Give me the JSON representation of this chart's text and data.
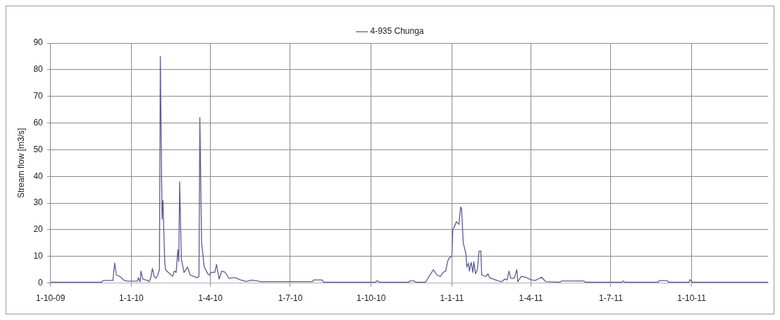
{
  "chart_data": {
    "type": "line",
    "ylabel": "Stream flow [m3/s]",
    "legend": "top",
    "grid": true,
    "marker": "none",
    "line_style": "solid",
    "xlim": [
      "2009-10-01",
      "2011-12-27"
    ],
    "xticks": [
      {
        "value": "2009-10-01",
        "label": "1-10-09"
      },
      {
        "value": "2010-01-01",
        "label": "1-1-10"
      },
      {
        "value": "2010-04-01",
        "label": "1-4-10"
      },
      {
        "value": "2010-07-01",
        "label": "1-7-10"
      },
      {
        "value": "2010-10-01",
        "label": "1-10-10"
      },
      {
        "value": "2011-01-01",
        "label": "1-1-11"
      },
      {
        "value": "2011-04-01",
        "label": "1-4-11"
      },
      {
        "value": "2011-07-01",
        "label": "1-7-11"
      },
      {
        "value": "2011-10-01",
        "label": "1-10-11"
      }
    ],
    "ylim": [
      0,
      90
    ],
    "yticks": [
      0,
      10,
      20,
      30,
      40,
      50,
      60,
      70,
      80,
      90
    ],
    "x": [
      "2009-10-01",
      "2009-11-28",
      "2009-11-30",
      "2009-12-11",
      "2009-12-13",
      "2009-12-15",
      "2009-12-19",
      "2009-12-23",
      "2009-12-27",
      "2010-01-08",
      "2010-01-09",
      "2010-01-11",
      "2010-01-12",
      "2010-01-14",
      "2010-01-19",
      "2010-01-21",
      "2010-01-23",
      "2010-01-25",
      "2010-01-27",
      "2010-01-29",
      "2010-01-31",
      "2010-02-02",
      "2010-02-03",
      "2010-02-05",
      "2010-02-06",
      "2010-02-08",
      "2010-02-09",
      "2010-02-12",
      "2010-02-17",
      "2010-02-19",
      "2010-02-21",
      "2010-02-23",
      "2010-02-24",
      "2010-02-25",
      "2010-02-27",
      "2010-03-02",
      "2010-03-06",
      "2010-03-09",
      "2010-03-13",
      "2010-03-17",
      "2010-03-19",
      "2010-03-20",
      "2010-03-22",
      "2010-03-25",
      "2010-03-29",
      "2010-03-31",
      "2010-04-02",
      "2010-04-06",
      "2010-04-08",
      "2010-04-11",
      "2010-04-14",
      "2010-04-18",
      "2010-04-22",
      "2010-04-26",
      "2010-04-30",
      "2010-05-04",
      "2010-05-12",
      "2010-05-18",
      "2010-05-25",
      "2010-05-28",
      "2010-07-26",
      "2010-07-28",
      "2010-08-06",
      "2010-08-08",
      "2010-10-06",
      "2010-10-08",
      "2010-10-11",
      "2010-11-13",
      "2010-11-14",
      "2010-11-19",
      "2010-11-21",
      "2010-12-02",
      "2010-12-07",
      "2010-12-11",
      "2010-12-15",
      "2010-12-19",
      "2010-12-22",
      "2010-12-25",
      "2010-12-27",
      "2010-12-29",
      "2011-01-01",
      "2011-01-02",
      "2011-01-05",
      "2011-01-06",
      "2011-01-09",
      "2011-01-11",
      "2011-01-12",
      "2011-01-14",
      "2011-01-17",
      "2011-01-18",
      "2011-01-20",
      "2011-01-21",
      "2011-01-23",
      "2011-01-25",
      "2011-01-26",
      "2011-01-28",
      "2011-01-30",
      "2011-02-01",
      "2011-02-03",
      "2011-02-04",
      "2011-02-09",
      "2011-02-11",
      "2011-02-13",
      "2011-02-17",
      "2011-02-23",
      "2011-02-27",
      "2011-03-02",
      "2011-03-05",
      "2011-03-07",
      "2011-03-09",
      "2011-03-13",
      "2011-03-16",
      "2011-03-17",
      "2011-03-21",
      "2011-03-26",
      "2011-03-30",
      "2011-04-02",
      "2011-04-06",
      "2011-04-13",
      "2011-04-18",
      "2011-05-04",
      "2011-05-06",
      "2011-05-31",
      "2011-06-02",
      "2011-07-14",
      "2011-07-15",
      "2011-07-17",
      "2011-08-24",
      "2011-08-25",
      "2011-09-03",
      "2011-09-05",
      "2011-09-28",
      "2011-09-29",
      "2011-10-02",
      "2011-12-27"
    ],
    "series": [
      {
        "name": "4-935 Chunga",
        "color": "#585c9c",
        "values": [
          0.3,
          0.3,
          1.0,
          1.0,
          7.5,
          3.0,
          2.5,
          1.2,
          0.7,
          0.7,
          2.0,
          0.5,
          4.5,
          1.5,
          1.0,
          0.5,
          1.8,
          5.5,
          2.5,
          1.8,
          3.0,
          5.0,
          85,
          24,
          31,
          8,
          5,
          4,
          2.5,
          4.5,
          4,
          12.5,
          8,
          38,
          9,
          4,
          6,
          3,
          2.5,
          2,
          2.5,
          62,
          15,
          6,
          3.5,
          3,
          4,
          4,
          7,
          1.5,
          4.5,
          4,
          1.8,
          2,
          2,
          1.3,
          0.6,
          1.1,
          0.8,
          0.5,
          0.5,
          1.2,
          1.2,
          0.3,
          0.3,
          0.9,
          0.3,
          0.3,
          0.8,
          0.8,
          0.3,
          0.3,
          3,
          5,
          3,
          2.5,
          4,
          4.5,
          8,
          9.5,
          10,
          20,
          22,
          23,
          22,
          28.5,
          28,
          15,
          11,
          6,
          7.5,
          4.5,
          7.8,
          4,
          8,
          3.5,
          5,
          12,
          12,
          3,
          2.5,
          3.5,
          2,
          1.5,
          0.8,
          0.5,
          1.5,
          1.2,
          4.5,
          1.8,
          1.8,
          5,
          0.5,
          2.5,
          2.2,
          1.5,
          1.2,
          1.0,
          2.2,
          0.5,
          0.3,
          0.8,
          0.8,
          0.3,
          0.3,
          0.8,
          0.3,
          0.3,
          0.9,
          0.9,
          0.3,
          0.3,
          1.3,
          0.3,
          0.3
        ]
      }
    ]
  }
}
